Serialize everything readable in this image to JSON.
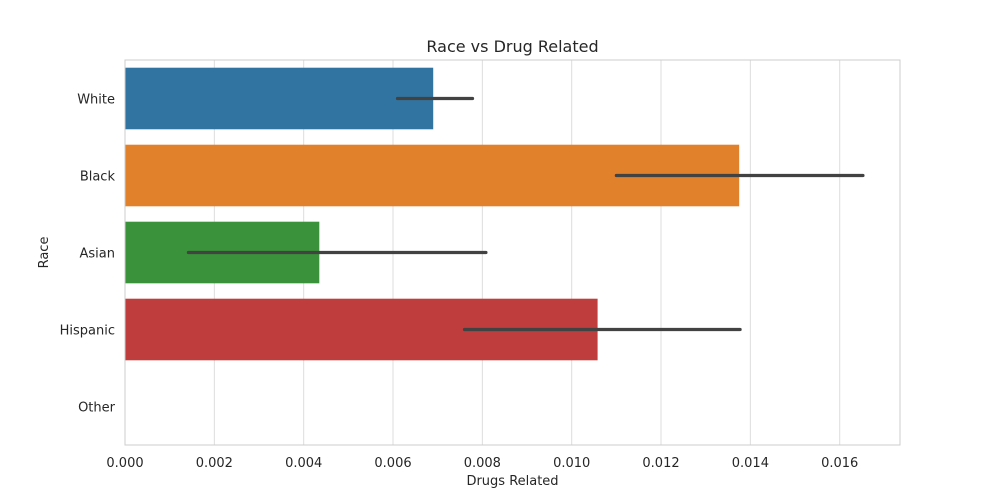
{
  "chart_data": {
    "type": "bar",
    "orientation": "horizontal",
    "title": "Race vs Drug Related",
    "xlabel": "Drugs Related",
    "ylabel": "Race",
    "categories": [
      "White",
      "Black",
      "Asian",
      "Hispanic",
      "Other"
    ],
    "values": [
      0.0069,
      0.01375,
      0.00435,
      0.01058,
      0
    ],
    "error_bars": [
      [
        0.0061,
        0.00778
      ],
      [
        0.011,
        0.01652
      ],
      [
        0.00142,
        0.00808
      ],
      [
        0.0076,
        0.01377
      ],
      null
    ],
    "colors": [
      "#3274a1",
      "#e1812c",
      "#3a923a",
      "#c03d3e",
      "#9372b2"
    ],
    "xlim": [
      0,
      0.01735
    ],
    "xticks": [
      0,
      0.002,
      0.004,
      0.006,
      0.008,
      0.01,
      0.012,
      0.014,
      0.016
    ],
    "xtick_labels": [
      "0.000",
      "0.002",
      "0.004",
      "0.006",
      "0.008",
      "0.010",
      "0.012",
      "0.014",
      "0.016"
    ],
    "grid": "vertical",
    "legend": "none"
  }
}
